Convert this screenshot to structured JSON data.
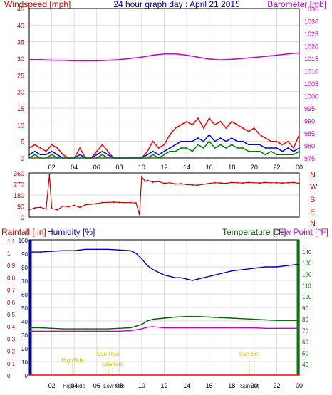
{
  "chart_data": [
    {
      "type": "line",
      "title": "24 hour graph day : April 21 2015",
      "left_axis_label": "Windspeed [mph]",
      "right_axis_label": "Barometer [mb]",
      "x_tick_labels": [
        "02",
        "04",
        "06",
        "08",
        "10",
        "12",
        "14",
        "16",
        "18",
        "20",
        "22",
        "00"
      ],
      "x_range_hours": [
        0,
        24
      ],
      "left_ylim": [
        0,
        45
      ],
      "left_ticks": [
        0,
        5,
        10,
        15,
        20,
        25,
        30,
        35,
        40,
        45
      ],
      "right_ylim": [
        975,
        1035
      ],
      "right_ticks": [
        975,
        980,
        985,
        990,
        995,
        1000,
        1005,
        1010,
        1015,
        1020,
        1025,
        1030,
        1035
      ],
      "colors": {
        "gust": "#ff0000",
        "average": "#0000ff",
        "wind": "#008000",
        "barometer": "#cc00cc"
      },
      "series": [
        {
          "axis": "right",
          "color": "#cc00cc",
          "x": [
            0,
            1,
            2,
            3,
            4,
            5,
            6,
            7,
            8,
            9,
            10,
            11,
            12,
            13,
            14,
            15,
            16,
            17,
            18,
            19,
            20,
            21,
            22,
            23,
            24
          ],
          "values": [
            1014.5,
            1014.5,
            1014.3,
            1014.2,
            1014.0,
            1014.0,
            1014.0,
            1014.2,
            1014.5,
            1015.0,
            1015.5,
            1016.3,
            1016.8,
            1016.8,
            1016.3,
            1015.5,
            1014.7,
            1014.4,
            1014.6,
            1015.0,
            1015.4,
            1015.8,
            1016.3,
            1016.8,
            1017.2
          ]
        },
        {
          "axis": "left",
          "color": "#ff0000",
          "x": [
            0,
            0.5,
            1,
            1.5,
            2,
            2.5,
            3,
            3.5,
            4,
            4.5,
            5,
            5.5,
            6,
            6.5,
            7,
            7.5,
            8,
            9,
            10,
            10.5,
            11,
            11.5,
            12,
            12.5,
            13,
            13.5,
            14,
            14.5,
            15,
            15.5,
            16,
            16.5,
            17,
            17.5,
            18,
            18.5,
            19,
            19.5,
            20,
            20.5,
            21,
            21.5,
            22,
            22.5,
            23,
            23.5,
            24
          ],
          "values": [
            3,
            4,
            3,
            2,
            4,
            3,
            1,
            0,
            0,
            3,
            0,
            0,
            2,
            4,
            2,
            0,
            0,
            0,
            0,
            2,
            5,
            3,
            4,
            7,
            9,
            10,
            11,
            10,
            12,
            9,
            12,
            10,
            11,
            9,
            11,
            10,
            9,
            8,
            9,
            7,
            6,
            5,
            5,
            4,
            5,
            3,
            7
          ]
        },
        {
          "axis": "left",
          "color": "#0000ff",
          "x": [
            0,
            0.5,
            1,
            1.5,
            2,
            2.5,
            3,
            3.5,
            4,
            4.5,
            5,
            5.5,
            6,
            6.5,
            7,
            7.5,
            8,
            9,
            10,
            10.5,
            11,
            11.5,
            12,
            12.5,
            13,
            13.5,
            14,
            14.5,
            15,
            15.5,
            16,
            16.5,
            17,
            17.5,
            18,
            18.5,
            19,
            19.5,
            20,
            20.5,
            21,
            21.5,
            22,
            22.5,
            23,
            23.5,
            24
          ],
          "values": [
            1,
            2,
            1,
            1,
            2,
            1,
            0,
            0,
            0,
            1,
            0,
            0,
            1,
            2,
            1,
            0,
            0,
            0,
            0,
            1,
            2,
            1,
            2,
            3,
            4,
            5,
            5,
            5,
            6,
            5,
            7,
            5,
            6,
            5,
            6,
            5,
            5,
            4,
            4,
            4,
            3,
            3,
            3,
            2,
            3,
            2,
            3
          ]
        },
        {
          "axis": "left",
          "color": "#008000",
          "x": [
            0,
            0.5,
            1,
            1.5,
            2,
            2.5,
            3,
            3.5,
            4,
            4.5,
            5,
            5.5,
            6,
            6.5,
            7,
            7.5,
            8,
            9,
            10,
            10.5,
            11,
            11.5,
            12,
            12.5,
            13,
            13.5,
            14,
            14.5,
            15,
            15.5,
            16,
            16.5,
            17,
            17.5,
            18,
            18.5,
            19,
            19.5,
            20,
            20.5,
            21,
            21.5,
            22,
            22.5,
            23,
            23.5,
            24
          ],
          "values": [
            0,
            1,
            0,
            0,
            1,
            0,
            0,
            0,
            0,
            0,
            0,
            0,
            0,
            1,
            0,
            0,
            0,
            0,
            0,
            0,
            1,
            0,
            1,
            2,
            2,
            3,
            3,
            2,
            4,
            3,
            5,
            3,
            4,
            3,
            4,
            3,
            3,
            2,
            2,
            2,
            1,
            2,
            1,
            1,
            1,
            1,
            2
          ]
        }
      ]
    },
    {
      "type": "scatter",
      "right_labels": [
        "N",
        "W",
        "S",
        "E",
        "N"
      ],
      "ylim": [
        0,
        360
      ],
      "y_ticks": [
        0,
        90,
        180,
        270,
        360
      ],
      "x_range_hours": [
        0,
        24
      ],
      "colors": {
        "direction": "#cc0000"
      },
      "series": [
        {
          "color": "#cc0000",
          "x": [
            0,
            0.5,
            1,
            1.5,
            1.8,
            2,
            2.5,
            3,
            3.5,
            4,
            4.5,
            5,
            5.5,
            6,
            6.5,
            7,
            7.5,
            8,
            8.5,
            9,
            9.5,
            9.8,
            10,
            10.3,
            10.5,
            11,
            11.5,
            12,
            12.5,
            13,
            13.5,
            14,
            14.5,
            15,
            15.5,
            16,
            16.5,
            17,
            17.5,
            18,
            18.5,
            19,
            19.5,
            20,
            20.5,
            21,
            21.5,
            22,
            22.5,
            23,
            23.5,
            24
          ],
          "values": [
            60,
            75,
            80,
            65,
            345,
            70,
            60,
            90,
            85,
            95,
            80,
            100,
            105,
            110,
            118,
            120,
            122,
            120,
            118,
            118,
            115,
            20,
            330,
            290,
            300,
            285,
            290,
            275,
            280,
            270,
            272,
            265,
            262,
            260,
            268,
            275,
            280,
            278,
            275,
            282,
            280,
            278,
            282,
            280,
            278,
            282,
            280,
            280,
            278,
            280,
            282,
            275
          ]
        }
      ]
    },
    {
      "type": "line",
      "left_axis_label_rain": "Rainfall [.in]",
      "left_axis_label_humidity": "Humidity [%]",
      "right_axis_label_temp": "Temperature [°F]",
      "right_axis_label_dew": "Dew Point [°F]",
      "x_tick_labels": [
        "02",
        "04",
        "06",
        "08",
        "10",
        "12",
        "14",
        "16",
        "18",
        "20",
        "22",
        "00"
      ],
      "x_range_hours": [
        0,
        24
      ],
      "humidity_ylim": [
        0,
        100
      ],
      "humidity_ticks": [
        0,
        10,
        20,
        30,
        40,
        50,
        60,
        70,
        80,
        90,
        100
      ],
      "rain_ticks": [
        "0",
        "0.1",
        "0.2",
        "0.3",
        "0.4",
        "0.5",
        "0.6",
        "0.7",
        "0.8",
        "0.9",
        "1",
        "1.1"
      ],
      "temp_ylim": [
        30,
        150
      ],
      "temp_ticks": [
        40,
        50,
        60,
        70,
        80,
        90,
        100,
        110,
        120,
        130,
        140
      ],
      "annotations": [
        "HighTide",
        "Sun Rise",
        "LowTide",
        "Sun Set"
      ],
      "x_event_labels": [
        "HighTide",
        "LowTide",
        "SunSet"
      ],
      "colors": {
        "humidity": "#0000cc",
        "temperature": "#006600",
        "dewpoint": "#cc00cc",
        "rain": "#ff0000"
      },
      "series": [
        {
          "axis": "humidity",
          "color": "#0000cc",
          "x": [
            0,
            1,
            2,
            3,
            4,
            5,
            6,
            7,
            8,
            9,
            9.5,
            10,
            10.5,
            11,
            11.5,
            12,
            12.5,
            13,
            13.5,
            14,
            14.5,
            15,
            15.5,
            16,
            16.5,
            17,
            18,
            19,
            20,
            21,
            22,
            23,
            24
          ],
          "values": [
            91,
            91,
            91.5,
            92,
            92,
            93,
            93,
            93,
            92.5,
            92,
            90,
            86,
            81,
            78,
            76,
            74,
            73,
            72,
            72,
            71,
            70,
            71,
            72,
            73,
            74,
            75,
            77,
            78,
            79,
            80,
            80,
            81,
            82
          ]
        },
        {
          "axis": "temperature",
          "color": "#006600",
          "x": [
            0,
            1,
            2,
            3,
            4,
            5,
            6,
            7,
            8,
            9,
            10,
            10.5,
            11,
            12,
            13,
            14,
            15,
            16,
            17,
            18,
            19,
            20,
            21,
            22,
            23,
            24
          ],
          "values": [
            72,
            72,
            71.5,
            71,
            71,
            71,
            71,
            71,
            71.5,
            72,
            75,
            78,
            79.5,
            80.5,
            81.5,
            82,
            82,
            81.5,
            81,
            80.5,
            80,
            79.5,
            79,
            78.5,
            78.5,
            78.5
          ]
        },
        {
          "axis": "temperature",
          "color": "#cc00cc",
          "x": [
            0,
            1,
            2,
            3,
            4,
            5,
            6,
            7,
            8,
            9,
            10,
            10.5,
            11,
            12,
            13,
            14,
            15,
            16,
            17,
            18,
            19,
            20,
            21,
            22,
            23,
            24
          ],
          "values": [
            69,
            69,
            69,
            69,
            69,
            69,
            69,
            69,
            69,
            69.5,
            71,
            72.5,
            73,
            72,
            72,
            72,
            72,
            72,
            72,
            72,
            72,
            72,
            71.5,
            71.5,
            71.5,
            71.5
          ]
        },
        {
          "axis": "humidity",
          "color": "#ff0000",
          "x": [
            0,
            24
          ],
          "values": [
            0,
            0
          ]
        }
      ]
    }
  ]
}
